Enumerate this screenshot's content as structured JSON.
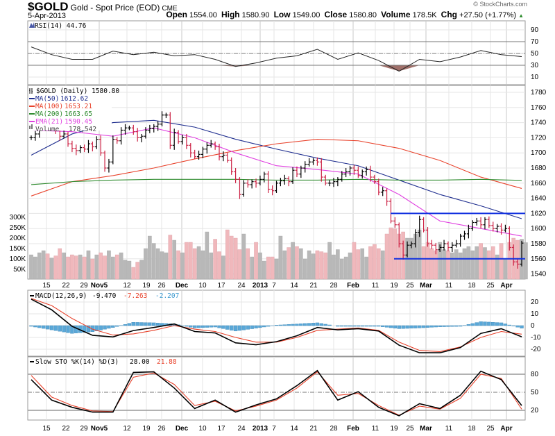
{
  "header": {
    "symbol": "$GOLD",
    "name": "Gold - Spot Price (EOD)",
    "exchange": "CME",
    "date": "5-Apr-2013",
    "copyright": "© StockCharts.com",
    "open_label": "Open",
    "open": "1554.00",
    "high_label": "High",
    "high": "1580.90",
    "low_label": "Low",
    "low": "1549.00",
    "close_label": "Close",
    "close": "1580.80",
    "volume_label": "Volume",
    "volume": "178.5K",
    "chg_label": "Chg",
    "chg": "+27.50 (+1.77%)",
    "chg_icon": "up-triangle-icon"
  },
  "colors": {
    "up_bar": "#000000",
    "down_bar": "#cc2244",
    "ma50": "#1f2e8f",
    "ma100": "#e8412a",
    "ma200": "#2e8b2e",
    "ema21": "#e040e0",
    "vol_up": "#b8b8b8",
    "vol_down": "#f0b8bc",
    "hline": "#1030e0",
    "macd_hist": "#5aa8d8",
    "rsi_fill": "#a0706a"
  },
  "chart_data": [
    {
      "type": "line",
      "title": "RSI(14) 44.76",
      "ylim": [
        0,
        100
      ],
      "yticks": [
        "90",
        "70",
        "50",
        "30",
        "10"
      ],
      "reference_lines": [
        70,
        50,
        30
      ],
      "series": [
        {
          "name": "RSI(14)",
          "values": [
            61,
            48,
            40,
            40,
            54,
            48,
            52,
            46,
            48,
            40,
            28,
            34,
            42,
            46,
            57,
            40,
            51,
            38,
            20,
            40,
            36,
            44,
            55,
            48,
            44.76
          ]
        }
      ]
    },
    {
      "type": "ohlc",
      "title": "$GOLD (Daily) 1580.80",
      "ylim": [
        1535,
        1785
      ],
      "yticks": [
        "1780",
        "1760",
        "1740",
        "1720",
        "1700",
        "1680",
        "1660",
        "1640",
        "1620",
        "1600",
        "1580",
        "1560",
        "1540"
      ],
      "close": [
        1720,
        1725,
        1740,
        1745,
        1735,
        1740,
        1730,
        1722,
        1725,
        1712,
        1706,
        1703,
        1707,
        1705,
        1712,
        1708,
        1718,
        1700,
        1680,
        1688,
        1718,
        1716,
        1730,
        1733,
        1733,
        1728,
        1720,
        1722,
        1730,
        1732,
        1735,
        1738,
        1750,
        1750,
        1710,
        1727,
        1715,
        1720,
        1710,
        1700,
        1695,
        1698,
        1705,
        1710,
        1712,
        1708,
        1695,
        1697,
        1690,
        1675,
        1665,
        1645,
        1660,
        1658,
        1662,
        1660,
        1665,
        1672,
        1652,
        1650,
        1660,
        1663,
        1666,
        1662,
        1677,
        1672,
        1680,
        1685,
        1688,
        1690,
        1688,
        1668,
        1660,
        1660,
        1662,
        1665,
        1672,
        1675,
        1680,
        1677,
        1670,
        1675,
        1678,
        1668,
        1662,
        1648,
        1650,
        1636,
        1610,
        1605,
        1580,
        1565,
        1578,
        1580,
        1595,
        1612,
        1598,
        1580,
        1578,
        1572,
        1575,
        1580,
        1575,
        1578,
        1580,
        1590,
        1593,
        1600,
        1608,
        1610,
        1605,
        1612,
        1604,
        1600,
        1603,
        1598,
        1600,
        1575,
        1556,
        1553,
        1580.8
      ],
      "overlays": [
        {
          "name": "MA(50)",
          "last": "1612.62",
          "values": [
            1697,
            1725,
            1740,
            1743,
            1734,
            1718,
            1705,
            1693,
            1683,
            1664,
            1645,
            1630,
            1613
          ]
        },
        {
          "name": "MA(100)",
          "last": "1653.21",
          "values": [
            1643,
            1662,
            1670,
            1680,
            1692,
            1703,
            1712,
            1718,
            1716,
            1706,
            1690,
            1668,
            1653
          ]
        },
        {
          "name": "MA(200)",
          "last": "1663.65",
          "values": [
            1658,
            1662,
            1664,
            1665,
            1665,
            1665,
            1664,
            1664,
            1665,
            1664,
            1664,
            1665,
            1663.65
          ]
        },
        {
          "name": "EMA(21)",
          "last": "1590.45",
          "values": [
            1730,
            1728,
            1722,
            1733,
            1720,
            1700,
            1683,
            1678,
            1672,
            1645,
            1610,
            1600,
            1590
          ]
        }
      ],
      "horizontal_lines": [
        1620,
        1560
      ],
      "volume": {
        "name": "Volume",
        "last": "178,542",
        "yticks": [
          "300K",
          "250K",
          "200K",
          "150K",
          "100K",
          "50K"
        ],
        "values_k": [
          120,
          110,
          130,
          140,
          125,
          105,
          115,
          150,
          130,
          110,
          120,
          115,
          120,
          110,
          140,
          100,
          120,
          130,
          115,
          140,
          110,
          120,
          130,
          95,
          90,
          60,
          85,
          95,
          150,
          210,
          175,
          150,
          135,
          130,
          215,
          190,
          140,
          130,
          180,
          180,
          150,
          160,
          140,
          230,
          130,
          195,
          135,
          115,
          240,
          210,
          200,
          145,
          220,
          150,
          110,
          180,
          130,
          90,
          110,
          110,
          100,
          210,
          140,
          155,
          180,
          160,
          150,
          100,
          140,
          125,
          140,
          135,
          130,
          180,
          120,
          145,
          100,
          110,
          130,
          180,
          145,
          150,
          110,
          160,
          170,
          150,
          140,
          220,
          250,
          245,
          220,
          230,
          200,
          200,
          220,
          240,
          160,
          180,
          150,
          140,
          180,
          145,
          140,
          130,
          145,
          130,
          150,
          160,
          140,
          160,
          175,
          155,
          140,
          160,
          120,
          175,
          100,
          180,
          200,
          190,
          195,
          178.5
        ]
      },
      "xticks": [
        "15",
        "22",
        "29",
        "Nov5",
        "12",
        "19",
        "26",
        "Dec",
        "10",
        "17",
        "24",
        "2013",
        "7",
        "14",
        "21",
        "28",
        "Feb",
        "11",
        "19",
        "25",
        "Mar",
        "11",
        "18",
        "25",
        "Apr"
      ]
    },
    {
      "type": "line",
      "title": "MACD(12,26,9)",
      "values_text": {
        "macd": "-9.470",
        "signal": "-7.263",
        "hist": "-2.207"
      },
      "ylim": [
        -27,
        27
      ],
      "yticks": [
        "20",
        "10",
        "0",
        "-10",
        "-20"
      ],
      "series": [
        {
          "name": "MACD",
          "values": [
            22.4,
            13.4,
            -0.6,
            -8.2,
            -9.6,
            -4.2,
            -1.6,
            1.4,
            -5,
            -6.2,
            -14.6,
            -16.2,
            -13.6,
            -8.6,
            -1.6,
            -3.6,
            -2.6,
            -4.6,
            -16.6,
            -23,
            -23,
            -18.6,
            -6.6,
            -2.6,
            -9.47
          ]
        },
        {
          "name": "Signal",
          "values": [
            23,
            17,
            6,
            -3,
            -8,
            -7,
            -4,
            0,
            -3,
            -5,
            -10,
            -14,
            -14,
            -10,
            -4,
            -3,
            -2,
            -4,
            -14,
            -21,
            -22,
            -18,
            -10,
            -5,
            -7.263
          ]
        }
      ]
    },
    {
      "type": "line",
      "title": "Slow STO %K(14) %D(3)",
      "values_text": {
        "k": "28.00",
        "d": "21.88"
      },
      "ylim": [
        0,
        100
      ],
      "yticks": [
        "80",
        "50",
        "20"
      ],
      "reference_lines": [
        80,
        50,
        20
      ],
      "series": [
        {
          "name": "%K",
          "values": [
            71,
            37,
            25,
            17,
            17,
            83,
            84,
            57,
            23,
            37,
            17,
            29,
            39,
            61,
            86,
            37,
            51,
            25,
            11,
            31,
            23,
            45,
            85,
            71,
            28
          ]
        },
        {
          "name": "%D",
          "values": [
            78,
            42,
            28,
            19,
            18,
            75,
            82,
            63,
            28,
            35,
            19,
            27,
            37,
            57,
            84,
            45,
            48,
            28,
            12,
            27,
            22,
            40,
            80,
            73,
            21.88
          ]
        }
      ]
    }
  ]
}
